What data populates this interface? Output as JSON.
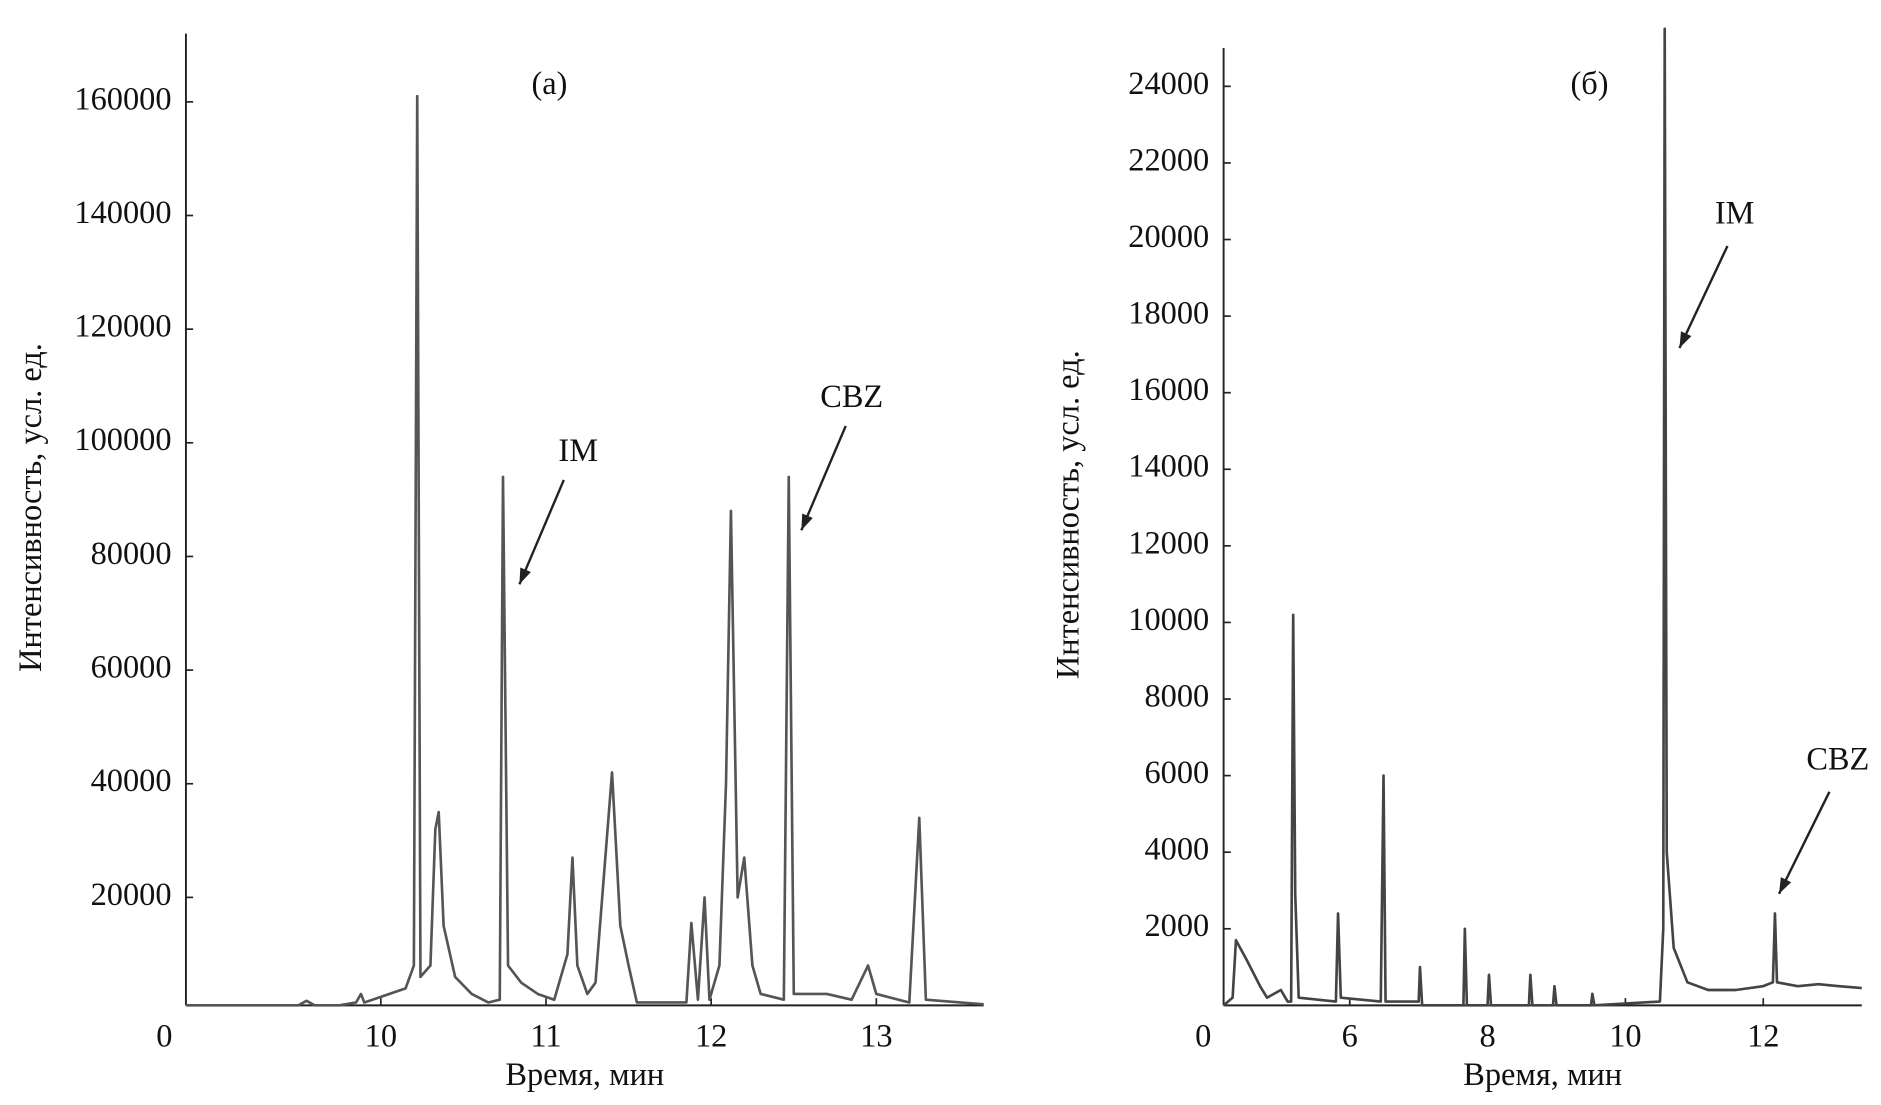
{
  "chart_data": [
    {
      "type": "line",
      "annotations": [
        "(a)",
        "IM",
        "CBZ"
      ],
      "origin_label": "0",
      "xlabel": "Время, мин",
      "ylabel": "Интенсивность, усл. ед.",
      "xlim": [
        8.82,
        13.65
      ],
      "xticks": [
        10,
        11,
        12,
        13
      ],
      "ylim": [
        1000,
        172000
      ],
      "yticks": [
        20000,
        40000,
        60000,
        80000,
        100000,
        120000,
        140000,
        160000
      ],
      "x": [
        8.82,
        9.5,
        9.55,
        9.6,
        9.75,
        9.85,
        9.88,
        9.9,
        10.0,
        10.15,
        10.2,
        10.22,
        10.24,
        10.3,
        10.33,
        10.35,
        10.38,
        10.45,
        10.55,
        10.65,
        10.72,
        10.74,
        10.77,
        10.85,
        10.95,
        11.05,
        11.13,
        11.16,
        11.19,
        11.25,
        11.3,
        11.4,
        11.45,
        11.5,
        11.55,
        11.85,
        11.88,
        11.92,
        11.96,
        11.99,
        12.05,
        12.09,
        12.12,
        12.16,
        12.2,
        12.25,
        12.3,
        12.44,
        12.47,
        12.5,
        12.7,
        12.85,
        12.95,
        13.0,
        13.2,
        13.26,
        13.3,
        13.65
      ],
      "series": [
        {
          "color": "#555555",
          "values": [
            1000,
            1000,
            1800,
            1000,
            1000,
            1500,
            3000,
            1500,
            2500,
            4000,
            8000,
            161000,
            6000,
            8000,
            32000,
            35000,
            15000,
            6000,
            3000,
            1500,
            2000,
            94000,
            8000,
            5000,
            3000,
            2000,
            10000,
            27000,
            8000,
            3000,
            5000,
            42000,
            15000,
            8000,
            1500,
            1500,
            15500,
            2000,
            20000,
            2000,
            8000,
            40000,
            88000,
            20000,
            27000,
            8000,
            3000,
            2000,
            94000,
            3000,
            3000,
            2000,
            8000,
            3000,
            1500,
            34000,
            2000,
            1200
          ]
        }
      ]
    },
    {
      "type": "line",
      "annotations": [
        "(б)",
        "IM",
        "CBZ"
      ],
      "origin_label": "0",
      "xlabel": "Время, мин",
      "ylabel": "Интенсивность, усл. ед.",
      "xlim": [
        4.17,
        13.43
      ],
      "xticks": [
        6,
        8,
        10,
        12
      ],
      "ylim": [
        0,
        25000
      ],
      "yticks": [
        2000,
        4000,
        6000,
        8000,
        10000,
        12000,
        14000,
        16000,
        18000,
        20000,
        22000,
        24000
      ],
      "x": [
        4.17,
        4.3,
        4.35,
        4.5,
        4.7,
        4.8,
        5.0,
        5.1,
        5.15,
        5.18,
        5.21,
        5.26,
        5.8,
        5.83,
        5.87,
        6.45,
        6.49,
        6.52,
        7.0,
        7.02,
        7.05,
        7.65,
        7.67,
        7.7,
        8.0,
        8.02,
        8.05,
        8.6,
        8.62,
        8.65,
        8.95,
        8.97,
        9.0,
        9.5,
        9.52,
        9.55,
        10.5,
        10.55,
        10.57,
        10.6,
        10.7,
        10.9,
        11.2,
        11.6,
        12.0,
        12.14,
        12.17,
        12.2,
        12.5,
        12.8,
        13.1,
        13.43
      ],
      "series": [
        {
          "color": "#444444",
          "values": [
            0,
            200,
            1700,
            1200,
            500,
            200,
            400,
            100,
            100,
            10200,
            2900,
            200,
            100,
            2400,
            200,
            100,
            6000,
            100,
            100,
            1000,
            0,
            0,
            2000,
            0,
            0,
            800,
            0,
            0,
            800,
            0,
            0,
            500,
            0,
            0,
            300,
            0,
            100,
            2000,
            25500,
            4000,
            1500,
            600,
            400,
            400,
            500,
            600,
            2400,
            600,
            500,
            550,
            500,
            450
          ]
        }
      ]
    }
  ]
}
